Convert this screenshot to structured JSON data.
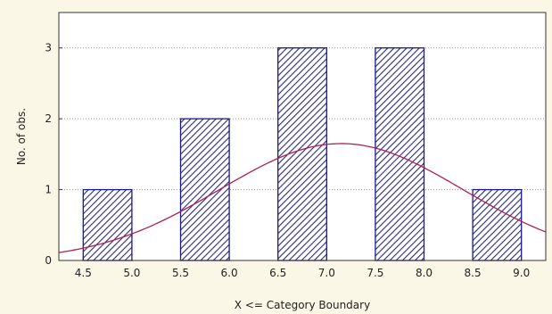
{
  "chart_data": {
    "type": "bar",
    "categories": [
      "4.5–5.0",
      "5.5–6.0",
      "6.5–7.0",
      "7.5–8.0",
      "8.5–9.0"
    ],
    "bins": [
      {
        "lower": 4.5,
        "upper": 5.0,
        "count": 1
      },
      {
        "lower": 5.5,
        "upper": 6.0,
        "count": 2
      },
      {
        "lower": 6.5,
        "upper": 7.0,
        "count": 3
      },
      {
        "lower": 7.5,
        "upper": 8.0,
        "count": 3
      },
      {
        "lower": 8.5,
        "upper": 9.0,
        "count": 1
      }
    ],
    "values": [
      1,
      2,
      3,
      3,
      1
    ],
    "x_ticks": [
      "4.5",
      "5.0",
      "5.5",
      "6.0",
      "6.5",
      "7.0",
      "7.5",
      "8.0",
      "8.5",
      "9.0"
    ],
    "y_ticks": [
      "0",
      "1",
      "2",
      "3"
    ],
    "xlabel": "X <= Category Boundary",
    "ylabel": "No. of obs.",
    "xlim": [
      4.25,
      9.25
    ],
    "ylim": [
      0,
      3.5
    ],
    "grid": true,
    "legend": "none",
    "fitted_curve": {
      "type": "normal",
      "mean": 7.15,
      "sd": 1.25,
      "peak_count": 1.65,
      "color": "#b01f4e"
    },
    "bar_fill": "hatched",
    "colors": {
      "bar_edge": "#1a1a8a",
      "hatch": "#2a2a7a",
      "curve": "#b01f4e",
      "background": "#fbf7e6",
      "plot_background": "#ffffff"
    }
  }
}
